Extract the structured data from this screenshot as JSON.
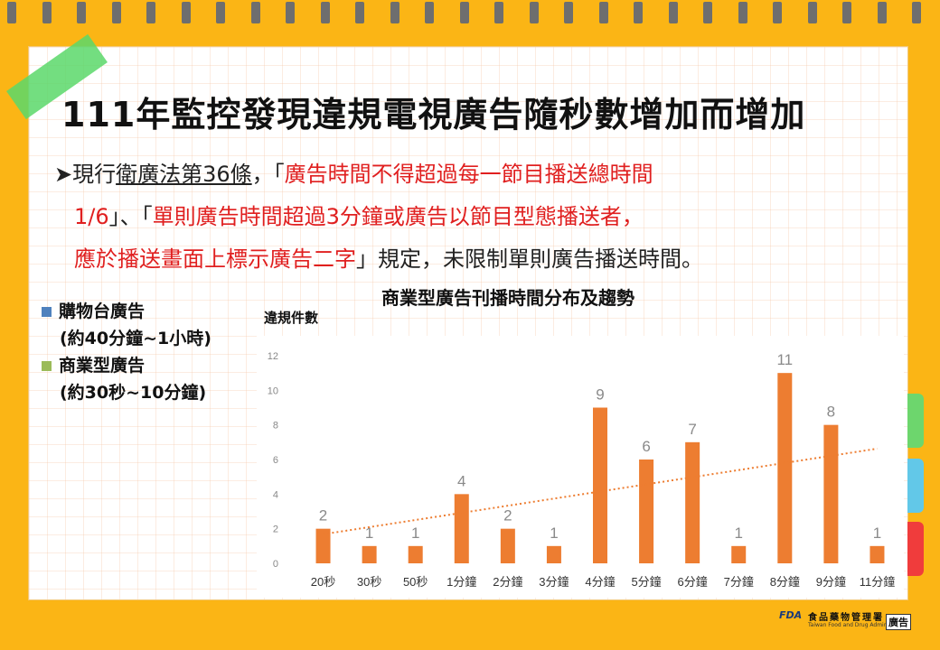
{
  "title": "111年監控發現違規電視廣告隨秒數增加而增加",
  "paragraph": {
    "bullet": "➤",
    "p1": "現行",
    "p2": "衛廣法第36條",
    "p3": "，「",
    "r1": "廣告時間不得超過每一節目播送總時間",
    "r2": "1/6",
    "p4": "」、「",
    "r3": "單則廣告時間超過3分鐘或廣告以節目型態播送者，",
    "r4": "應於播送畫面上標示廣告二字",
    "p5": "」規定，未限制單則廣告播送時間。"
  },
  "legend": [
    {
      "label": "購物台廣告",
      "sub": "(約40分鐘~1小時)",
      "color": "#4F81BD"
    },
    {
      "label": "商業型廣告",
      "sub": "(約30秒~10分鐘)",
      "color": "#9BBB59"
    }
  ],
  "chart_data": {
    "type": "bar",
    "title": "商業型廣告刊播時間分布及趨勢",
    "ylabel": "違規件數",
    "categories": [
      "20秒",
      "30秒",
      "50秒",
      "1分鐘",
      "2分鐘",
      "3分鐘",
      "4分鐘",
      "5分鐘",
      "6分鐘",
      "7分鐘",
      "8分鐘",
      "9分鐘",
      "11分鐘"
    ],
    "values": [
      2,
      1,
      1,
      4,
      2,
      1,
      9,
      6,
      7,
      1,
      11,
      8,
      1
    ],
    "ylim": [
      0,
      12
    ],
    "yticks": [
      0,
      2,
      4,
      6,
      8,
      10,
      12
    ],
    "bar_color": "#ED7D31",
    "trendline": {
      "type": "linear",
      "style": "dotted",
      "color": "#ED7D31"
    },
    "grid": false
  },
  "logo": {
    "fda": "FDA",
    "name": "食品藥物管理署",
    "english": "Taiwan Food and Drug Administration",
    "badge": "廣告"
  },
  "colors": {
    "background": "#FBB515",
    "paper": "#FFFFFF",
    "accent_red": "#E01F1F"
  }
}
